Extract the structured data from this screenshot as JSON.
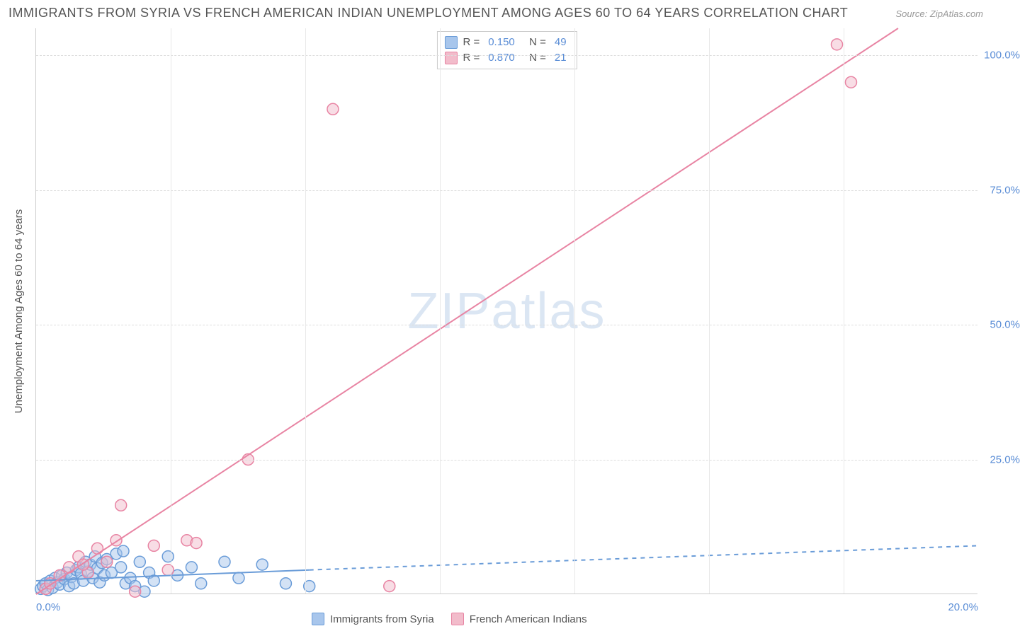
{
  "title": "IMMIGRANTS FROM SYRIA VS FRENCH AMERICAN INDIAN UNEMPLOYMENT AMONG AGES 60 TO 64 YEARS CORRELATION CHART",
  "source": "Source: ZipAtlas.com",
  "watermark_zip": "ZIP",
  "watermark_atlas": "atlas",
  "y_axis_label": "Unemployment Among Ages 60 to 64 years",
  "chart": {
    "type": "scatter",
    "background_color": "#ffffff",
    "grid_color": "#dddddd",
    "axis_color": "#cccccc",
    "label_color": "#5a8dd6",
    "title_color": "#555555",
    "xlim": [
      0,
      20
    ],
    "ylim": [
      0,
      105
    ],
    "x_ticks": [
      0,
      20
    ],
    "x_tick_labels": [
      "0.0%",
      "20.0%"
    ],
    "x_gridlines": [
      2.86,
      5.71,
      8.57,
      11.43,
      14.29,
      17.14
    ],
    "y_ticks": [
      25,
      50,
      75,
      100
    ],
    "y_tick_labels": [
      "25.0%",
      "50.0%",
      "75.0%",
      "100.0%"
    ],
    "marker_radius": 8,
    "marker_opacity": 0.5,
    "line_width": 2
  },
  "series": [
    {
      "name": "Immigrants from Syria",
      "color_fill": "#a8c6ec",
      "color_stroke": "#6a9cd8",
      "R": "0.150",
      "N": "49",
      "trend": {
        "x1": 0,
        "y1": 2.5,
        "x2": 5.8,
        "y2": 4.5,
        "x2_ext": 20,
        "y2_ext": 9.0,
        "solid_until": 5.8
      },
      "points": [
        [
          0.1,
          1.0
        ],
        [
          0.15,
          1.5
        ],
        [
          0.2,
          2.0
        ],
        [
          0.25,
          0.8
        ],
        [
          0.3,
          2.5
        ],
        [
          0.35,
          1.2
        ],
        [
          0.4,
          3.0
        ],
        [
          0.45,
          2.2
        ],
        [
          0.5,
          1.8
        ],
        [
          0.55,
          3.5
        ],
        [
          0.6,
          2.8
        ],
        [
          0.65,
          4.0
        ],
        [
          0.7,
          1.5
        ],
        [
          0.75,
          3.2
        ],
        [
          0.8,
          2.0
        ],
        [
          0.85,
          4.5
        ],
        [
          0.9,
          5.0
        ],
        [
          0.95,
          3.8
        ],
        [
          1.0,
          2.5
        ],
        [
          1.05,
          6.0
        ],
        [
          1.1,
          4.2
        ],
        [
          1.15,
          5.5
        ],
        [
          1.2,
          3.0
        ],
        [
          1.25,
          7.0
        ],
        [
          1.3,
          4.8
        ],
        [
          1.35,
          2.2
        ],
        [
          1.4,
          5.8
        ],
        [
          1.45,
          3.5
        ],
        [
          1.5,
          6.5
        ],
        [
          1.6,
          4.0
        ],
        [
          1.7,
          7.5
        ],
        [
          1.8,
          5.0
        ],
        [
          1.85,
          8.0
        ],
        [
          1.9,
          2.0
        ],
        [
          2.0,
          3.0
        ],
        [
          2.1,
          1.5
        ],
        [
          2.2,
          6.0
        ],
        [
          2.3,
          0.5
        ],
        [
          2.4,
          4.0
        ],
        [
          2.5,
          2.5
        ],
        [
          2.8,
          7.0
        ],
        [
          3.0,
          3.5
        ],
        [
          3.3,
          5.0
        ],
        [
          3.5,
          2.0
        ],
        [
          4.0,
          6.0
        ],
        [
          4.3,
          3.0
        ],
        [
          4.8,
          5.5
        ],
        [
          5.3,
          2.0
        ],
        [
          5.8,
          1.5
        ]
      ]
    },
    {
      "name": "French American Indians",
      "color_fill": "#f2bccb",
      "color_stroke": "#e884a3",
      "R": "0.870",
      "N": "21",
      "trend": {
        "x1": 0,
        "y1": 0,
        "x2": 18.3,
        "y2": 105,
        "solid_until": 18.3
      },
      "points": [
        [
          0.2,
          1.0
        ],
        [
          0.3,
          2.0
        ],
        [
          0.5,
          3.5
        ],
        [
          0.7,
          5.0
        ],
        [
          0.9,
          7.0
        ],
        [
          1.1,
          4.0
        ],
        [
          1.3,
          8.5
        ],
        [
          1.5,
          6.0
        ],
        [
          1.7,
          10.0
        ],
        [
          1.8,
          16.5
        ],
        [
          2.1,
          0.5
        ],
        [
          2.5,
          9.0
        ],
        [
          2.8,
          4.5
        ],
        [
          3.2,
          10.0
        ],
        [
          3.4,
          9.5
        ],
        [
          4.5,
          25.0
        ],
        [
          6.3,
          90.0
        ],
        [
          7.5,
          1.5
        ],
        [
          17.0,
          102.0
        ],
        [
          17.3,
          95.0
        ],
        [
          1.0,
          5.5
        ]
      ]
    }
  ],
  "legend_bottom": [
    {
      "label": "Immigrants from Syria"
    },
    {
      "label": "French American Indians"
    }
  ]
}
